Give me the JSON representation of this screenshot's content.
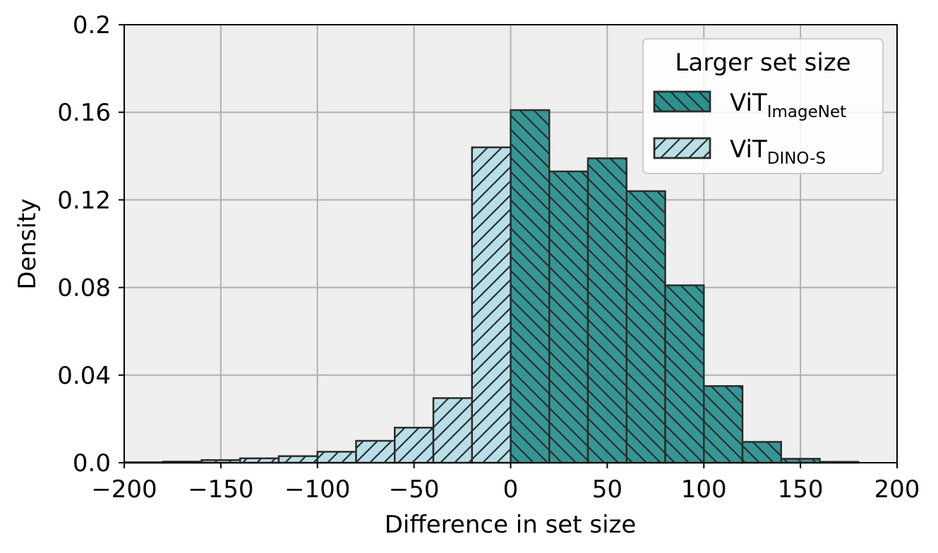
{
  "chart_data": {
    "type": "bar",
    "xlabel": "Difference in set size",
    "ylabel": "Density",
    "xlim": [
      -200,
      200
    ],
    "ylim": [
      0,
      0.2
    ],
    "x_ticks": [
      "−200",
      "−150",
      "−100",
      "−50",
      "0",
      "50",
      "100",
      "150",
      "200"
    ],
    "x_tick_values": [
      -200,
      -150,
      -100,
      -50,
      0,
      50,
      100,
      150,
      200
    ],
    "y_ticks": [
      "0.0",
      "0.04",
      "0.08",
      "0.12",
      "0.16",
      "0.2"
    ],
    "y_tick_values": [
      0,
      0.04,
      0.08,
      0.12,
      0.16,
      0.2
    ],
    "grid": true,
    "background": "#efefef",
    "legend": {
      "title": "Larger set size",
      "placement": "top-right"
    },
    "series": [
      {
        "name_main": "ViT",
        "name_sub": "ImageNet",
        "color": "#2a918f",
        "hatch": "backslash",
        "bins": [
          [
            0,
            20,
            0.161
          ],
          [
            20,
            40,
            0.133
          ],
          [
            40,
            60,
            0.139
          ],
          [
            60,
            80,
            0.124
          ],
          [
            80,
            100,
            0.081
          ],
          [
            100,
            120,
            0.035
          ],
          [
            120,
            140,
            0.0095
          ],
          [
            140,
            160,
            0.0018
          ],
          [
            160,
            180,
            0.0004
          ]
        ]
      },
      {
        "name_main": "ViT",
        "name_sub": "DINO-S",
        "color": "#b8dfe8",
        "hatch": "slash",
        "bins": [
          [
            -200,
            -180,
            0.0002
          ],
          [
            -180,
            -160,
            0.0005
          ],
          [
            -160,
            -140,
            0.0012
          ],
          [
            -140,
            -120,
            0.002
          ],
          [
            -120,
            -100,
            0.003
          ],
          [
            -100,
            -80,
            0.005
          ],
          [
            -80,
            -60,
            0.01
          ],
          [
            -60,
            -40,
            0.016
          ],
          [
            -40,
            -20,
            0.0295
          ],
          [
            -20,
            0,
            0.144
          ]
        ]
      }
    ]
  }
}
